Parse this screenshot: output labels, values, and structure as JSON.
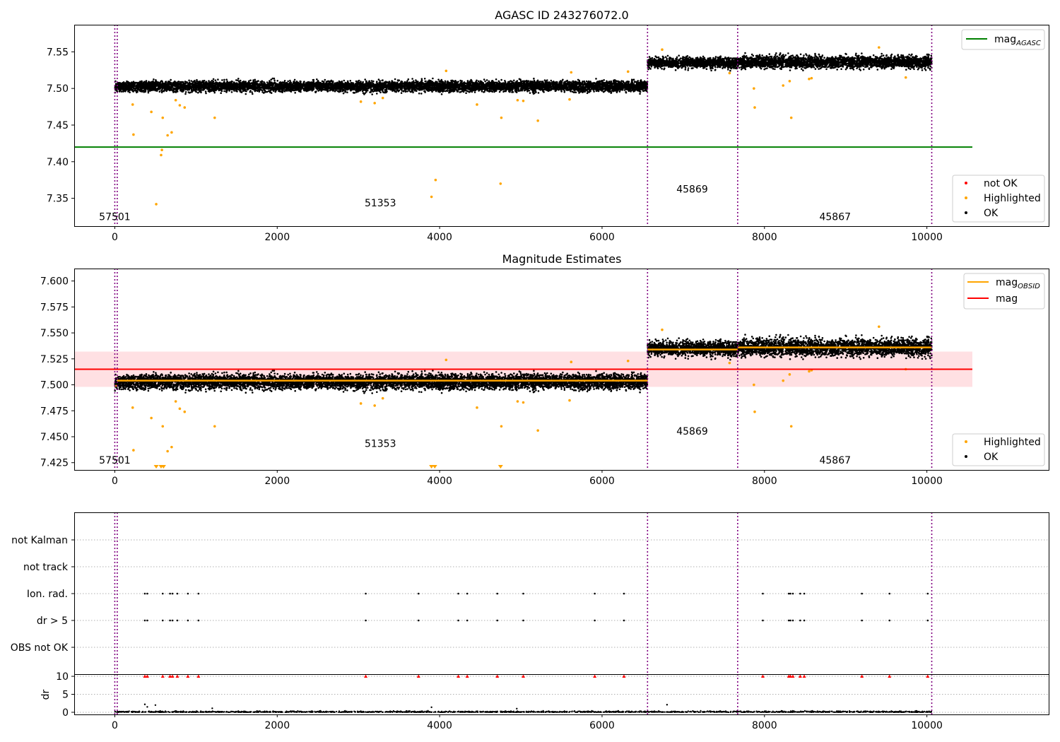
{
  "chart_data": [
    {
      "type": "scatter",
      "title": "AGASC ID 243276072.0",
      "xlim": [
        -500,
        11500
      ],
      "ylim": [
        7.312,
        7.587
      ],
      "x_ticks": [
        0,
        2000,
        4000,
        6000,
        8000,
        10000
      ],
      "y_ticks": [
        7.35,
        7.4,
        7.45,
        7.5,
        7.55
      ],
      "y_tick_labels": [
        "7.35",
        "7.40",
        "7.45",
        "7.50",
        "7.55"
      ],
      "obs_boundaries": [
        0,
        30,
        6560,
        7670,
        10060
      ],
      "ok_segments": [
        {
          "x0": 0,
          "x1": 30,
          "mean": 7.502,
          "spread": 0.006
        },
        {
          "x0": 30,
          "x1": 6560,
          "mean": 7.503,
          "spread": 0.006
        },
        {
          "x0": 6560,
          "x1": 7670,
          "mean": 7.535,
          "spread": 0.006
        },
        {
          "x0": 7670,
          "x1": 10060,
          "mean": 7.536,
          "spread": 0.007
        }
      ],
      "highlighted": [
        [
          220,
          7.478
        ],
        [
          230,
          7.437
        ],
        [
          450,
          7.468
        ],
        [
          510,
          7.342
        ],
        [
          570,
          7.409
        ],
        [
          580,
          7.416
        ],
        [
          590,
          7.46
        ],
        [
          650,
          7.436
        ],
        [
          700,
          7.44
        ],
        [
          750,
          7.484
        ],
        [
          800,
          7.477
        ],
        [
          860,
          7.474
        ],
        [
          1230,
          7.46
        ],
        [
          3030,
          7.482
        ],
        [
          3200,
          7.48
        ],
        [
          3300,
          7.487
        ],
        [
          3900,
          7.352
        ],
        [
          3950,
          7.375
        ],
        [
          4080,
          7.524
        ],
        [
          4460,
          7.478
        ],
        [
          4750,
          7.37
        ],
        [
          4760,
          7.46
        ],
        [
          4960,
          7.484
        ],
        [
          5030,
          7.483
        ],
        [
          5210,
          7.456
        ],
        [
          5600,
          7.485
        ],
        [
          5620,
          7.522
        ],
        [
          6320,
          7.523
        ],
        [
          6740,
          7.553
        ],
        [
          7570,
          7.521
        ],
        [
          7870,
          7.5
        ],
        [
          7880,
          7.474
        ],
        [
          8230,
          7.504
        ],
        [
          8310,
          7.51
        ],
        [
          8330,
          7.46
        ],
        [
          8550,
          7.513
        ],
        [
          8580,
          7.514
        ],
        [
          9410,
          7.556
        ],
        [
          9740,
          7.515
        ]
      ],
      "annotations": [
        {
          "text": "57501",
          "x": 0,
          "y": 7.32
        },
        {
          "text": "51353",
          "x": 3270,
          "y": 7.339
        },
        {
          "text": "45869",
          "x": 7110,
          "y": 7.358
        },
        {
          "text": "45867",
          "x": 8870,
          "y": 7.32
        }
      ],
      "agasc_line": {
        "value": 7.42,
        "x0": -500,
        "x1": 10560,
        "color": "#008000"
      },
      "legend": {
        "position": "upper right + lower right",
        "upper": [
          {
            "label": "mag",
            "subscript": "AGASC",
            "color": "#008000",
            "kind": "line"
          }
        ],
        "lower": [
          {
            "label": "not OK",
            "color": "#ff0000",
            "kind": "point"
          },
          {
            "label": "Highlighted",
            "color": "#ffa500",
            "kind": "point"
          },
          {
            "label": "OK",
            "color": "#000000",
            "kind": "point"
          }
        ]
      },
      "grid": false
    },
    {
      "type": "scatter",
      "title": "Magnitude Estimates",
      "xlim": [
        -500,
        11500
      ],
      "ylim": [
        7.418,
        7.612
      ],
      "x_ticks": [
        0,
        2000,
        4000,
        6000,
        8000,
        10000
      ],
      "y_ticks": [
        7.425,
        7.45,
        7.475,
        7.5,
        7.525,
        7.55,
        7.575,
        7.6
      ],
      "y_tick_labels": [
        "7.425",
        "7.450",
        "7.475",
        "7.500",
        "7.525",
        "7.550",
        "7.575",
        "7.600"
      ],
      "mag": {
        "value": 7.515,
        "band": [
          7.498,
          7.532
        ],
        "x0": -500,
        "x1": 10560,
        "color": "#ff0000"
      },
      "mag_obsid": [
        {
          "x0": 0,
          "x1": 30,
          "value": 7.499
        },
        {
          "x0": 30,
          "x1": 6560,
          "value": 7.504
        },
        {
          "x0": 6560,
          "x1": 7670,
          "value": 7.534
        },
        {
          "x0": 7670,
          "x1": 10060,
          "value": 7.536
        }
      ],
      "highlighted_offscale_x": [
        510,
        570,
        600,
        3900,
        3940,
        4750
      ],
      "annotations": [
        {
          "text": "57501",
          "x": 0,
          "y": 7.424
        },
        {
          "text": "51353",
          "x": 3270,
          "y": 7.44
        },
        {
          "text": "45869",
          "x": 7110,
          "y": 7.452
        },
        {
          "text": "45867",
          "x": 8870,
          "y": 7.424
        }
      ],
      "legend": {
        "position": "upper right + lower right",
        "upper": [
          {
            "label": "mag",
            "subscript": "OBSID",
            "color": "#ffa500",
            "kind": "line"
          },
          {
            "label": "mag",
            "subscript": "",
            "color": "#ff0000",
            "kind": "line"
          }
        ],
        "lower": [
          {
            "label": "Highlighted",
            "color": "#ffa500",
            "kind": "point"
          },
          {
            "label": "OK",
            "color": "#000000",
            "kind": "point"
          }
        ]
      },
      "grid": false
    },
    {
      "type": "scatter",
      "title": "",
      "xlim": [
        -500,
        11500
      ],
      "categories": [
        "not Kalman",
        "not track",
        "Ion. rad.",
        "dr > 5",
        "OBS not OK"
      ],
      "flag_x": {
        "Ion. rad.": [
          370,
          400,
          590,
          680,
          710,
          770,
          900,
          1030,
          3090,
          3740,
          4230,
          4340,
          4710,
          5030,
          5910,
          6270,
          7980,
          8300,
          8320,
          8350,
          8440,
          8490,
          9200,
          9540,
          10010
        ],
        "dr > 5": [
          370,
          400,
          590,
          680,
          710,
          770,
          900,
          1030,
          3090,
          3740,
          4230,
          4340,
          4710,
          5030,
          5910,
          6270,
          7980,
          8300,
          8320,
          8350,
          8440,
          8490,
          9200,
          9540,
          10010
        ]
      },
      "grid": "horizontal dotted"
    },
    {
      "type": "scatter",
      "title": "",
      "xlim": [
        -500,
        11500
      ],
      "ylim": [
        -0.6,
        10.6
      ],
      "ylabel": "dr",
      "x_ticks": [
        0,
        2000,
        4000,
        6000,
        8000,
        10000
      ],
      "y_ticks": [
        0,
        5,
        10
      ],
      "dr_typical": 0.3,
      "dr_outliers": [
        [
          370,
          2.2
        ],
        [
          400,
          1.5
        ],
        [
          500,
          2.0
        ],
        [
          3900,
          1.4
        ],
        [
          6800,
          2.1
        ],
        [
          4950,
          1.0
        ],
        [
          1200,
          1.1
        ]
      ],
      "dr_clipped_x": [
        370,
        400,
        590,
        680,
        710,
        770,
        900,
        1030,
        3090,
        3740,
        4230,
        4340,
        4710,
        5030,
        5910,
        6270,
        7980,
        8300,
        8320,
        8350,
        8440,
        8490,
        9200,
        9540,
        10010
      ],
      "grid": "horizontal dotted"
    }
  ],
  "colors": {
    "ok": "#000000",
    "highlighted": "#ffa500",
    "not_ok": "#ff0000",
    "obs_line": "#800080",
    "band": "#ffe0e3",
    "grid": "#b0b0b0"
  }
}
